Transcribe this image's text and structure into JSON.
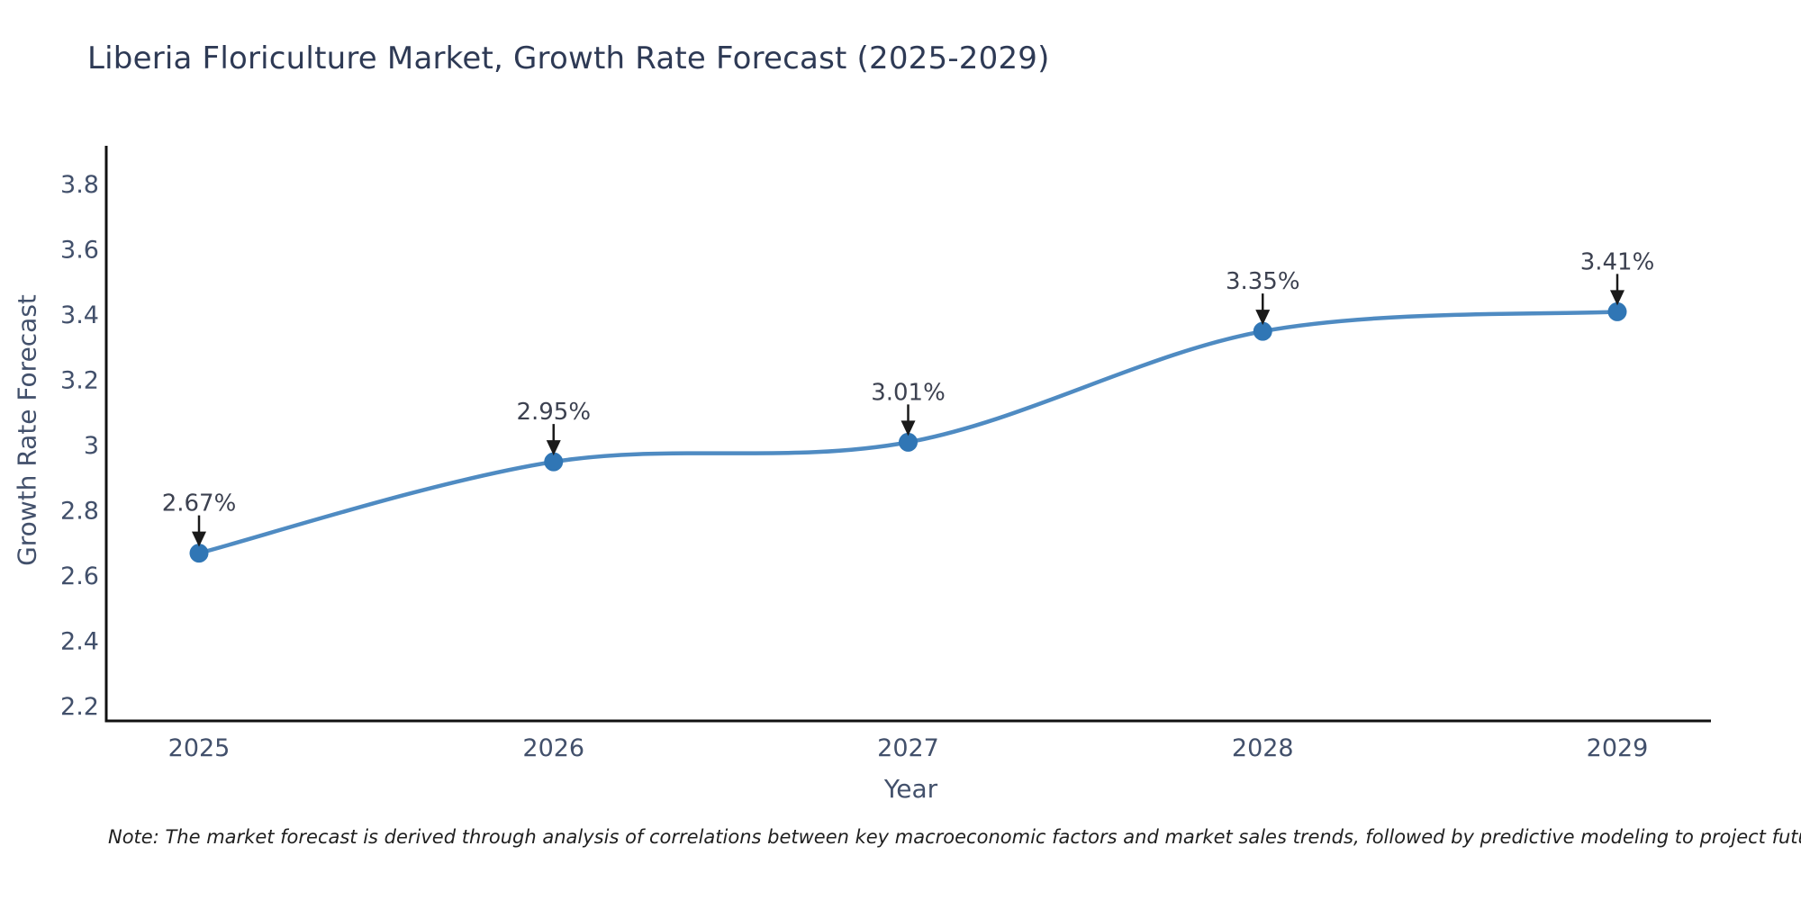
{
  "chart": {
    "title": "Liberia Floriculture Market, Growth Rate Forecast (2025-2029)",
    "xlabel": "Year",
    "ylabel": "Growth Rate Forecast",
    "note": "Note: The market forecast is derived through analysis of correlations between key macroeconomic factors and market sales trends, followed by predictive modeling to project future sales"
  },
  "chart_data": {
    "type": "line",
    "title": "Liberia Floriculture Market, Growth Rate Forecast (2025-2029)",
    "xlabel": "Year",
    "ylabel": "Growth Rate Forecast",
    "categories": [
      "2025",
      "2026",
      "2027",
      "2028",
      "2029"
    ],
    "series": [
      {
        "name": "Growth Rate Forecast",
        "values": [
          2.67,
          2.95,
          3.01,
          3.35,
          3.41
        ],
        "point_labels": [
          "2.67%",
          "2.95%",
          "3.01%",
          "3.35%",
          "3.41%"
        ]
      }
    ],
    "ytick_labels": [
      "2.2",
      "2.4",
      "2.6",
      "2.8",
      "3",
      "3.2",
      "3.4",
      "3.6",
      "3.8"
    ],
    "yticks": [
      2.2,
      2.4,
      2.6,
      2.8,
      3.0,
      3.2,
      3.4,
      3.6,
      3.8
    ],
    "ylim": [
      2.16,
      3.92
    ],
    "grid": false,
    "legend": "none",
    "line_shape": "spline",
    "colors": {
      "line": "#4f8bc2",
      "marker": "#3076b5",
      "axis": "#111111",
      "tick_label": "#42506b",
      "annotation_text": "#3c4150",
      "annotation_arrow": "#1a1a1a",
      "title": "#2e3a55"
    }
  }
}
